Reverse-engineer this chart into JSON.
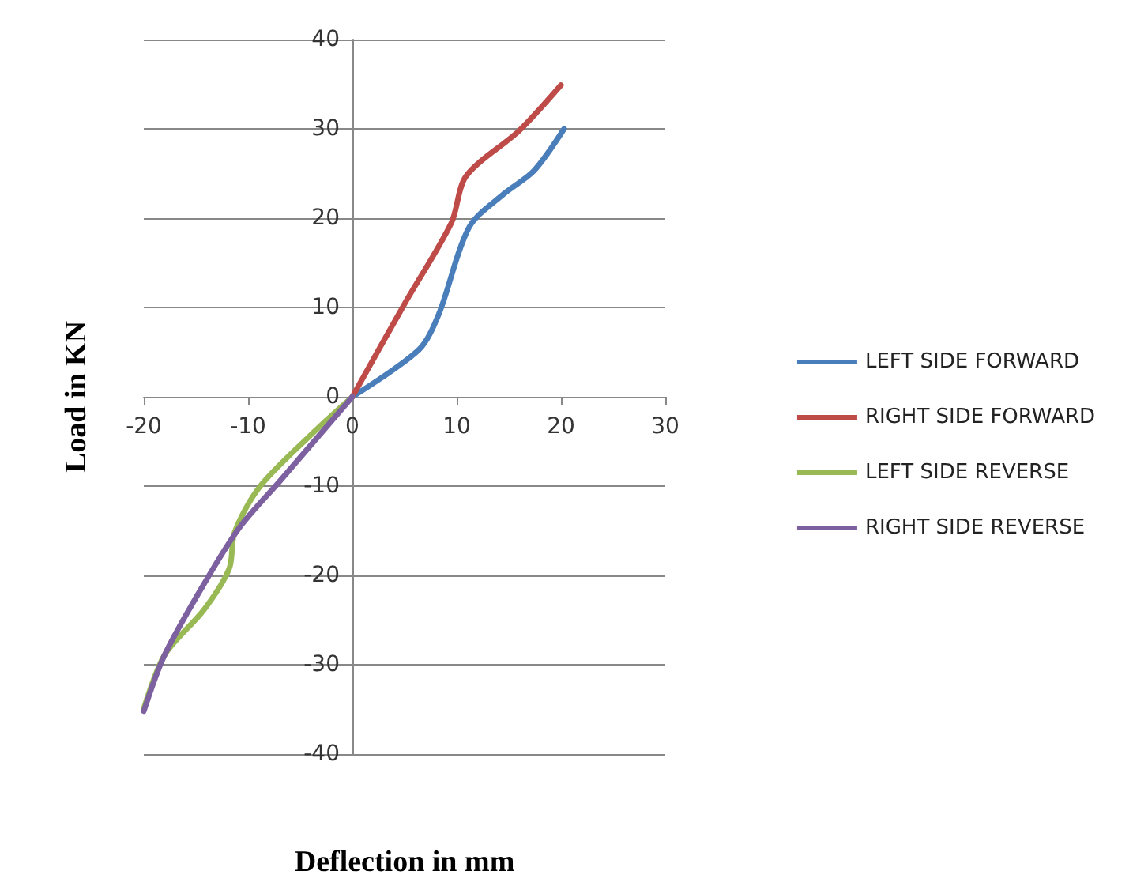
{
  "chart_data": {
    "type": "line",
    "xlabel": "Deflection in mm",
    "ylabel": "Load in KN",
    "xlim": [
      -20,
      30
    ],
    "xticks": [
      -20,
      -10,
      0,
      10,
      20,
      30
    ],
    "ylim": [
      -40,
      40
    ],
    "yticks": [
      -40,
      -30,
      -20,
      -10,
      0,
      10,
      20,
      30,
      40
    ],
    "grid": "y",
    "legend": "right",
    "marker": "none",
    "line_style": "solid",
    "series": [
      {
        "name": "LEFT SIDE FORWARD",
        "color": "#4a7ebb",
        "x": [
          0,
          6.4,
          8.3,
          11.2,
          14.5,
          17.4,
          20.3
        ],
        "values": [
          0,
          5.3,
          9.3,
          19,
          22.7,
          25.3,
          30
        ]
      },
      {
        "name": "RIGHT SIDE FORWARD",
        "color": "#be4b48",
        "x": [
          0,
          5,
          9.5,
          10.9,
          16,
          20
        ],
        "values": [
          0,
          10.4,
          19.5,
          24.7,
          29.8,
          34.9
        ]
      },
      {
        "name": "LEFT SIDE REVERSE",
        "color": "#98b954",
        "x": [
          0,
          -4.1,
          -8.9,
          -11.3,
          -11.8,
          -14.2,
          -18,
          -20
        ],
        "values": [
          0,
          -4.4,
          -10.1,
          -15.2,
          -19.2,
          -23.8,
          -28.9,
          -34.9
        ]
      },
      {
        "name": "RIGHT SIDE REVERSE",
        "color": "#7d60a0",
        "x": [
          0,
          -7,
          -10.8,
          -14.2,
          -18,
          -20
        ],
        "values": [
          0,
          -9.5,
          -14.6,
          -20.9,
          -28.9,
          -35.2
        ]
      }
    ]
  }
}
